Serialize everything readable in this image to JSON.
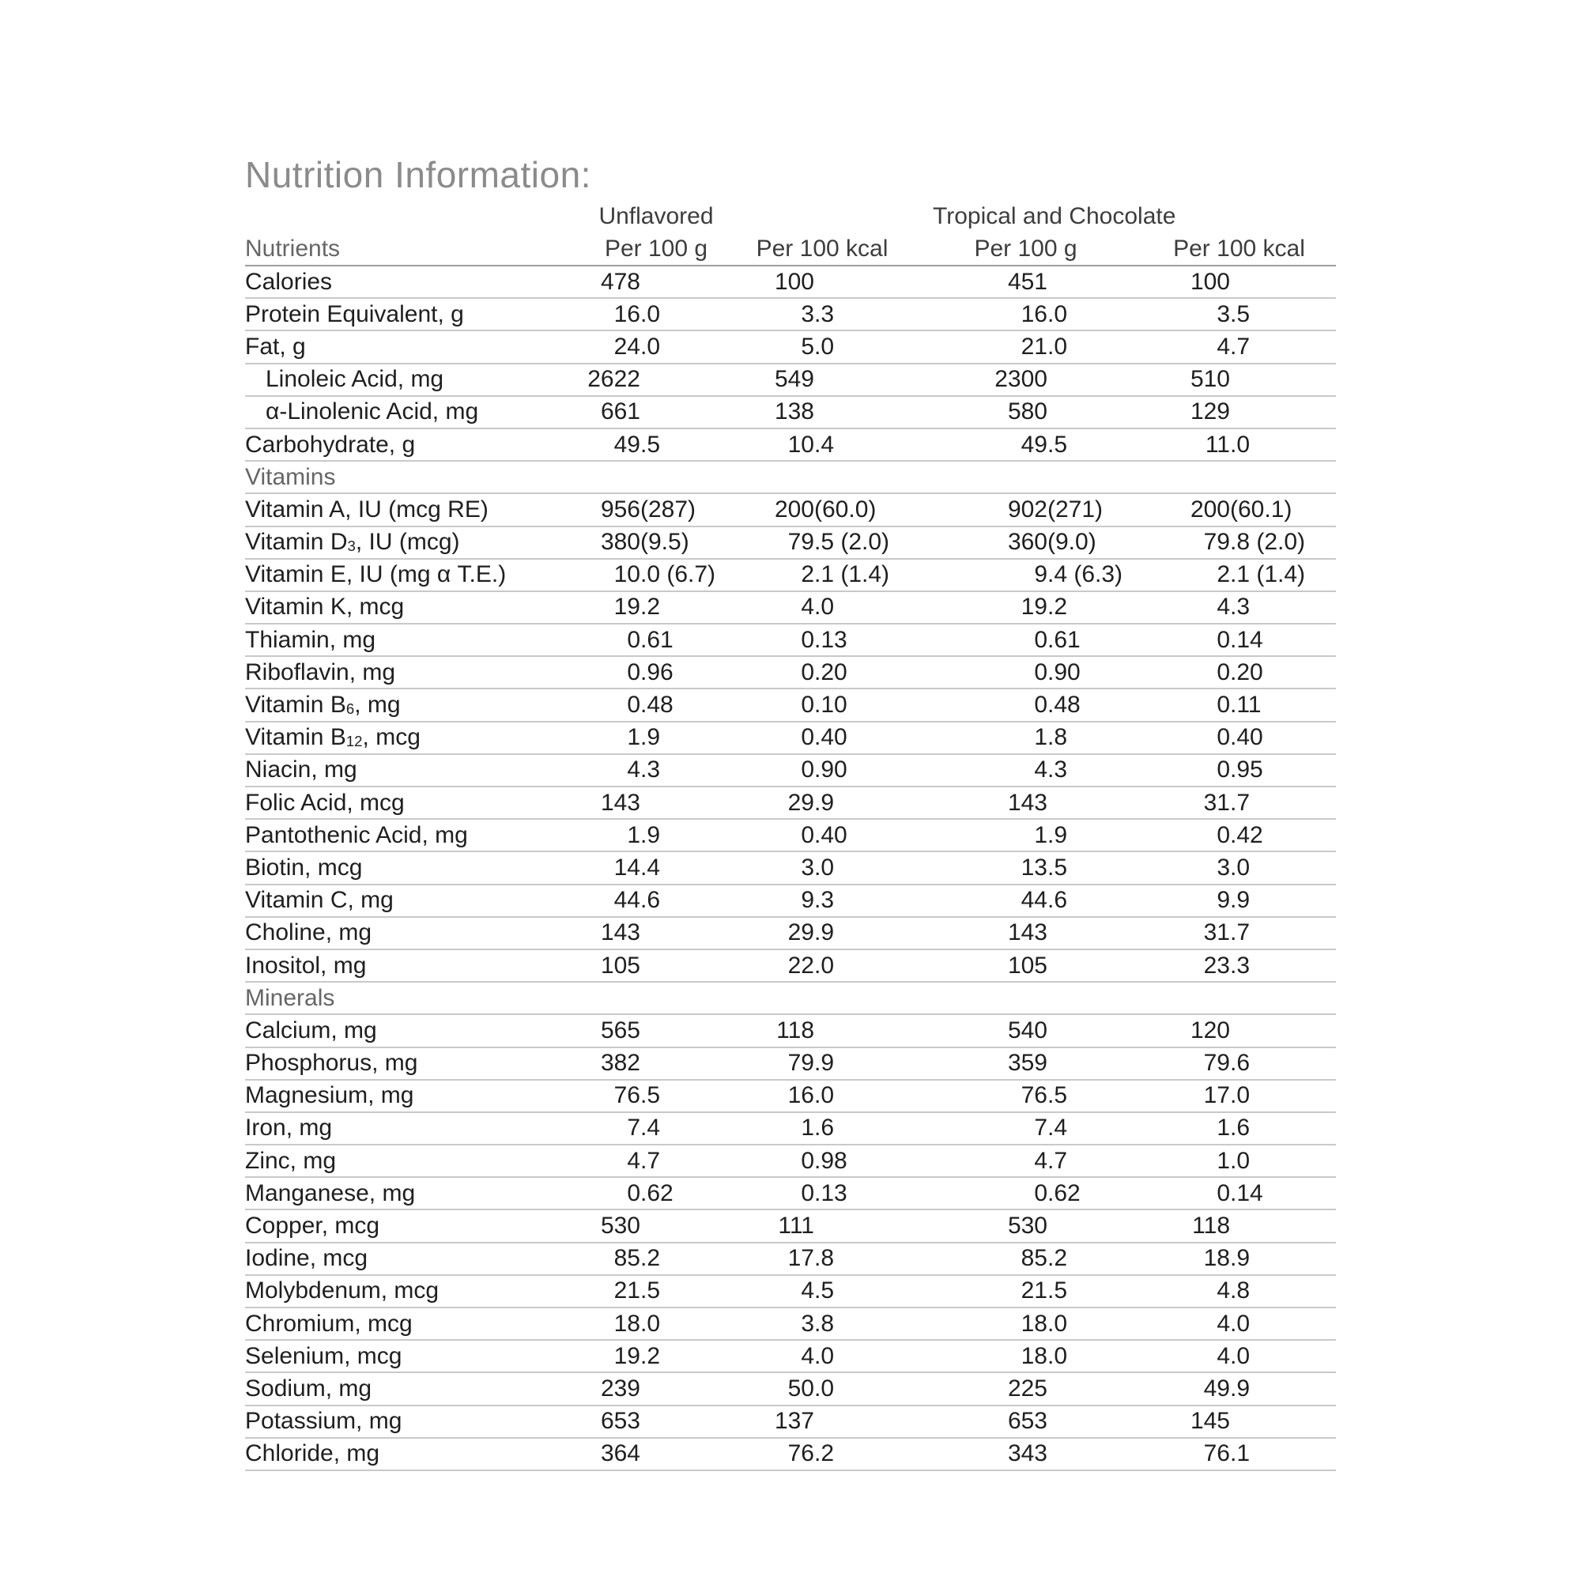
{
  "title": "Nutrition Information:",
  "colors": {
    "background": "#ffffff",
    "title_text": "#8b8b8b",
    "body_text": "#1f1f1f",
    "muted_text": "#666666",
    "header_text": "#3d3d3d",
    "row_line": "#c9c9c9",
    "header_line": "#9e9e9e"
  },
  "table": {
    "group_headers": [
      {
        "label": "Unflavored"
      },
      {
        "label": "Tropical and Chocolate"
      }
    ],
    "column_headers": {
      "nutrients": "Nutrients",
      "cols": [
        "Per 100 g",
        "Per 100 kcal",
        "Per 100 g",
        "Per 100 kcal"
      ]
    },
    "rows": [
      {
        "label": "Calories",
        "values": [
          "478",
          "100",
          "451",
          "100"
        ]
      },
      {
        "label": "Protein Equivalent, g",
        "values": [
          "16.0",
          "3.3",
          "16.0",
          "3.5"
        ]
      },
      {
        "label": "Fat, g",
        "values": [
          "24.0",
          "5.0",
          "21.0",
          "4.7"
        ]
      },
      {
        "label": "Linoleic Acid, mg",
        "indent": true,
        "values": [
          "2622",
          "549",
          "2300",
          "510"
        ]
      },
      {
        "label": "α-Linolenic Acid, mg",
        "indent": true,
        "values": [
          "661",
          "138",
          "580",
          "129"
        ]
      },
      {
        "label": "Carbohydrate, g",
        "values": [
          "49.5",
          "10.4",
          "49.5",
          "11.0"
        ]
      },
      {
        "section": "Vitamins"
      },
      {
        "label": "Vitamin A, IU (mcg RE)",
        "values": [
          "956 (287)",
          "200 (60.0)",
          "902 (271)",
          "200 (60.1)"
        ]
      },
      {
        "label": "Vitamin D_3_, IU (mcg)",
        "values": [
          "380 (9.5)",
          "79.5 (2.0)",
          "360 (9.0)",
          "79.8 (2.0)"
        ]
      },
      {
        "label": "Vitamin E, IU (mg α T.E.)",
        "values": [
          "10.0 (6.7)",
          "2.1 (1.4)",
          "9.4 (6.3)",
          "2.1 (1.4)"
        ]
      },
      {
        "label": "Vitamin K, mcg",
        "values": [
          "19.2",
          "4.0",
          "19.2",
          "4.3"
        ]
      },
      {
        "label": "Thiamin, mg",
        "values": [
          "0.61",
          "0.13",
          "0.61",
          "0.14"
        ]
      },
      {
        "label": "Riboflavin, mg",
        "values": [
          "0.96",
          "0.20",
          "0.90",
          "0.20"
        ]
      },
      {
        "label": "Vitamin B_6_, mg",
        "values": [
          "0.48",
          "0.10",
          "0.48",
          "0.11"
        ]
      },
      {
        "label": "Vitamin B_12_, mcg",
        "values": [
          "1.9",
          "0.40",
          "1.8",
          "0.40"
        ]
      },
      {
        "label": "Niacin, mg",
        "values": [
          "4.3",
          "0.90",
          "4.3",
          "0.95"
        ]
      },
      {
        "label": "Folic Acid, mcg",
        "values": [
          "143",
          "29.9",
          "143",
          "31.7"
        ]
      },
      {
        "label": "Pantothenic Acid, mg",
        "values": [
          "1.9",
          "0.40",
          "1.9",
          "0.42"
        ]
      },
      {
        "label": "Biotin, mcg",
        "values": [
          "14.4",
          "3.0",
          "13.5",
          "3.0"
        ]
      },
      {
        "label": "Vitamin C, mg",
        "values": [
          "44.6",
          "9.3",
          "44.6",
          "9.9"
        ]
      },
      {
        "label": "Choline, mg",
        "values": [
          "143",
          "29.9",
          "143",
          "31.7"
        ]
      },
      {
        "label": "Inositol, mg",
        "values": [
          "105",
          "22.0",
          "105",
          "23.3"
        ]
      },
      {
        "section": "Minerals"
      },
      {
        "label": "Calcium, mg",
        "values": [
          "565",
          "118",
          "540",
          "120"
        ]
      },
      {
        "label": "Phosphorus, mg",
        "values": [
          "382",
          "79.9",
          "359",
          "79.6"
        ]
      },
      {
        "label": "Magnesium, mg",
        "values": [
          "76.5",
          "16.0",
          "76.5",
          "17.0"
        ]
      },
      {
        "label": "Iron, mg",
        "values": [
          "7.4",
          "1.6",
          "7.4",
          "1.6"
        ]
      },
      {
        "label": "Zinc, mg",
        "values": [
          "4.7",
          "0.98",
          "4.7",
          "1.0"
        ]
      },
      {
        "label": "Manganese, mg",
        "values": [
          "0.62",
          "0.13",
          "0.62",
          "0.14"
        ]
      },
      {
        "label": "Copper, mcg",
        "values": [
          "530",
          "111",
          "530",
          "118"
        ]
      },
      {
        "label": "Iodine, mcg",
        "values": [
          "85.2",
          "17.8",
          "85.2",
          "18.9"
        ]
      },
      {
        "label": "Molybdenum, mcg",
        "values": [
          "21.5",
          "4.5",
          "21.5",
          "4.8"
        ]
      },
      {
        "label": "Chromium, mcg",
        "values": [
          "18.0",
          "3.8",
          "18.0",
          "4.0"
        ]
      },
      {
        "label": "Selenium, mcg",
        "values": [
          "19.2",
          "4.0",
          "18.0",
          "4.0"
        ]
      },
      {
        "label": "Sodium, mg",
        "values": [
          "239",
          "50.0",
          "225",
          "49.9"
        ]
      },
      {
        "label": "Potassium, mg",
        "values": [
          "653",
          "137",
          "653",
          "145"
        ]
      },
      {
        "label": "Chloride, mg",
        "values": [
          "364",
          "76.2",
          "343",
          "76.1"
        ]
      }
    ]
  }
}
